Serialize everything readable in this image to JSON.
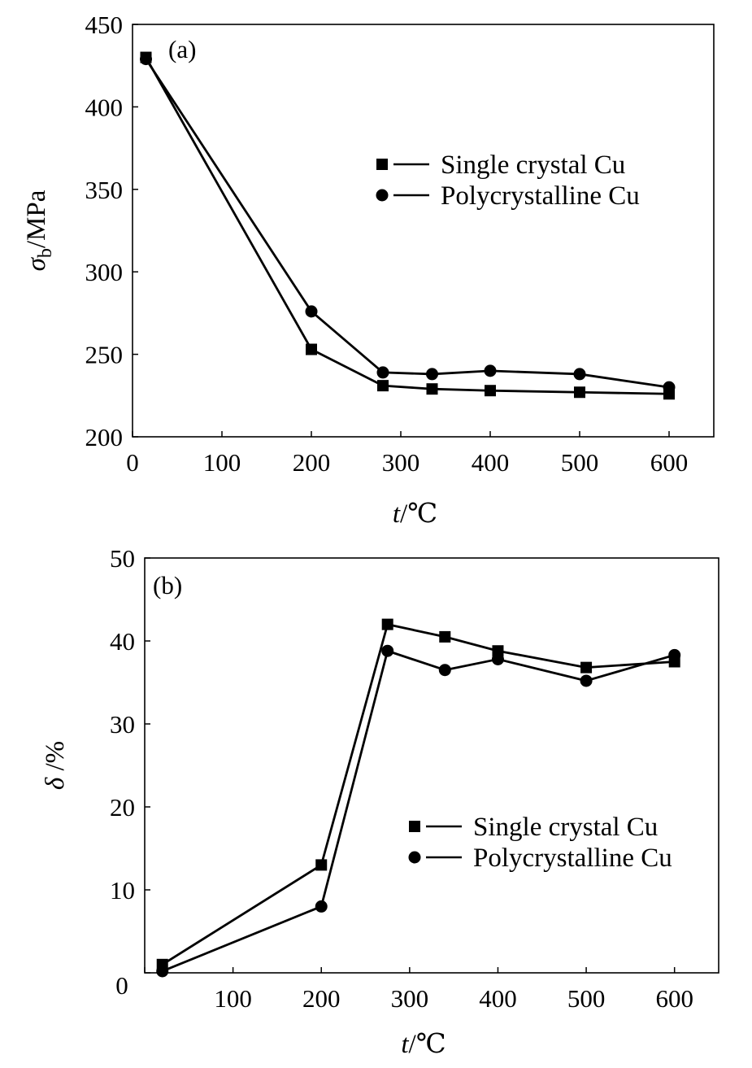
{
  "chart_data": [
    {
      "type": "line",
      "panel_label": "(a)",
      "xlabel_italic": "t",
      "xlabel_unit": "/℃",
      "ylabel_symbol": "σ",
      "ylabel_sub": "b",
      "ylabel_unit": "/MPa",
      "xlim": [
        0,
        650
      ],
      "ylim": [
        200,
        450
      ],
      "xticks": [
        0,
        100,
        200,
        300,
        400,
        500,
        600
      ],
      "yticks": [
        200,
        250,
        300,
        350,
        400,
        450
      ],
      "legend_position": "upper-right",
      "grid": false,
      "series": [
        {
          "name": "Single crystal Cu",
          "marker": "square",
          "x": [
            15,
            200,
            280,
            335,
            400,
            500,
            600
          ],
          "y": [
            430,
            253,
            231,
            229,
            228,
            227,
            226
          ]
        },
        {
          "name": "Polycrystalline Cu",
          "marker": "circle",
          "x": [
            15,
            200,
            280,
            335,
            400,
            500,
            600
          ],
          "y": [
            429,
            276,
            239,
            238,
            240,
            238,
            230
          ]
        }
      ]
    },
    {
      "type": "line",
      "panel_label": "(b)",
      "xlabel_italic": "t",
      "xlabel_unit": "/℃",
      "ylabel_symbol": "δ",
      "ylabel_unit": " /%",
      "xlim": [
        0,
        650
      ],
      "ylim": [
        0,
        50
      ],
      "xticks": [
        0,
        100,
        200,
        300,
        400,
        500,
        600
      ],
      "yticks": [
        0,
        10,
        20,
        30,
        40,
        50
      ],
      "legend_position": "center-right",
      "grid": false,
      "series": [
        {
          "name": "Single crystal Cu",
          "marker": "square",
          "x": [
            20,
            200,
            275,
            340,
            400,
            500,
            600
          ],
          "y": [
            1,
            13,
            42,
            40.5,
            38.8,
            36.8,
            37.5
          ]
        },
        {
          "name": "Polycrystalline Cu",
          "marker": "circle",
          "x": [
            20,
            200,
            275,
            340,
            400,
            500,
            600
          ],
          "y": [
            0.2,
            8,
            38.8,
            36.5,
            37.8,
            35.2,
            38.3
          ]
        }
      ]
    }
  ]
}
